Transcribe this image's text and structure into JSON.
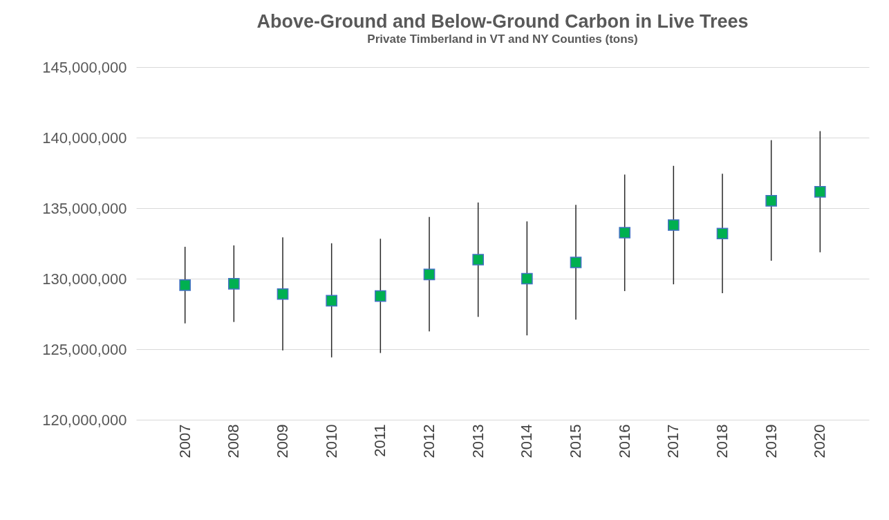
{
  "chart_data": {
    "type": "scatter",
    "title": "Above-Ground and Below-Ground Carbon in Live Trees",
    "subtitle": "Private Timberland in VT and NY Counties (tons)",
    "categories": [
      "2007",
      "2008",
      "2009",
      "2010",
      "2011",
      "2012",
      "2013",
      "2014",
      "2015",
      "2016",
      "2017",
      "2018",
      "2019",
      "2020"
    ],
    "series": [
      {
        "color": "#00b050",
        "values": [
          129540000,
          129640000,
          128910000,
          128440000,
          128770000,
          130300000,
          131350000,
          130000000,
          131150000,
          133260000,
          133800000,
          133200000,
          135520000,
          136160000
        ],
        "errors": [
          [
            126830000,
            132260000
          ],
          [
            126930000,
            132360000
          ],
          [
            124910000,
            132930000
          ],
          [
            124420000,
            132510000
          ],
          [
            124730000,
            132830000
          ],
          [
            126260000,
            134380000
          ],
          [
            127290000,
            135400000
          ],
          [
            125980000,
            134060000
          ],
          [
            127090000,
            135230000
          ],
          [
            129120000,
            137380000
          ],
          [
            129600000,
            138000000
          ],
          [
            128970000,
            137440000
          ],
          [
            131270000,
            139820000
          ],
          [
            131870000,
            140460000
          ]
        ]
      }
    ],
    "ylim": [
      120000000,
      145000000
    ],
    "yticks": [
      {
        "value": 120000000,
        "label": "120,000,000"
      },
      {
        "value": 125000000,
        "label": "125,000,000"
      },
      {
        "value": 130000000,
        "label": "130,000,000"
      },
      {
        "value": 135000000,
        "label": "135,000,000"
      },
      {
        "value": 140000000,
        "label": "140,000,000"
      },
      {
        "value": 145000000,
        "label": "145,000,000"
      }
    ],
    "grid": "y",
    "marker": "square"
  }
}
